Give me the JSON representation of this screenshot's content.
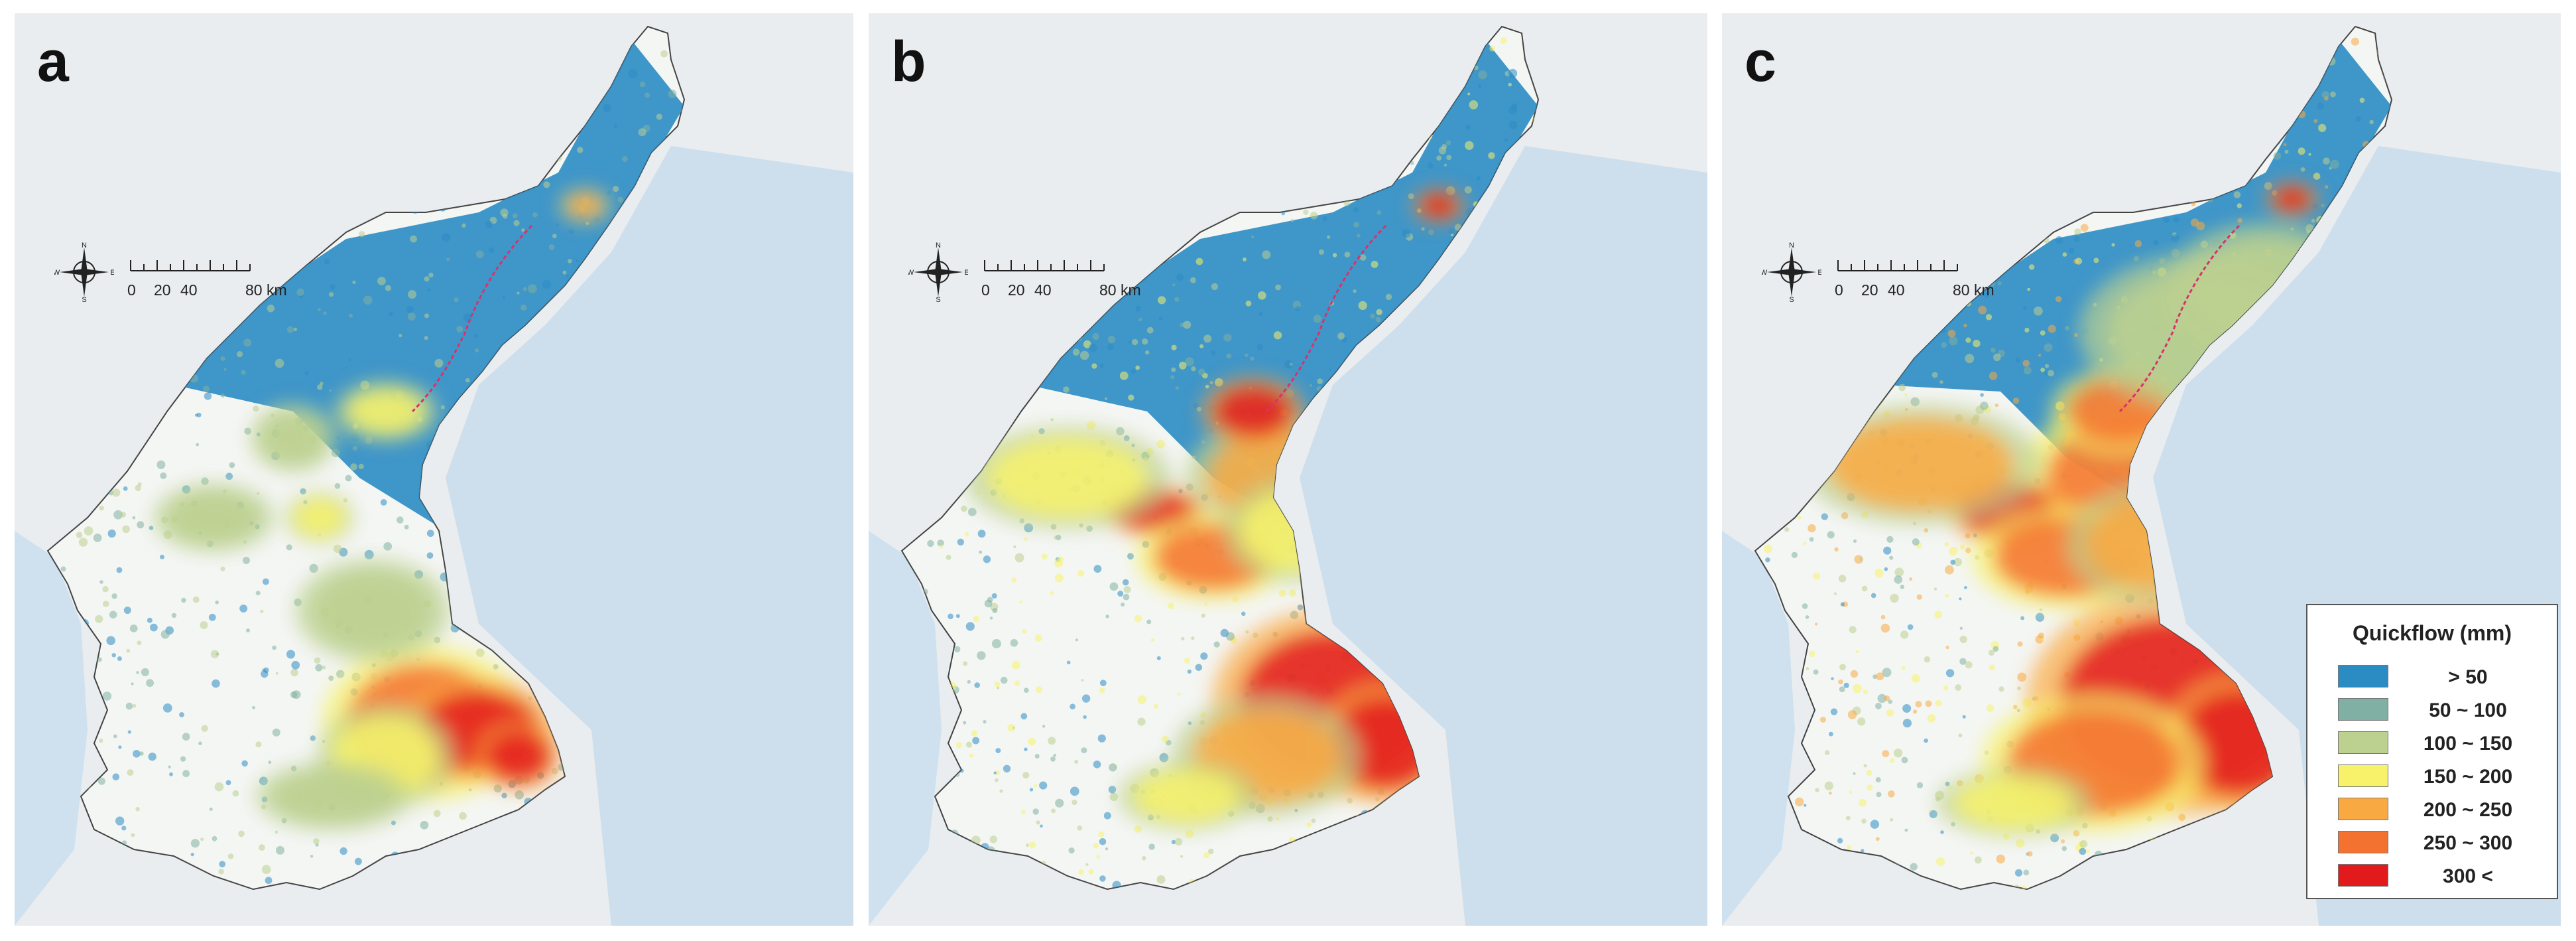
{
  "panels": [
    {
      "label": "a",
      "intensity": 0
    },
    {
      "label": "b",
      "intensity": 1
    },
    {
      "label": "c",
      "intensity": 2
    }
  ],
  "compass": {
    "n": "N",
    "s": "S",
    "e": "E",
    "w": "W"
  },
  "scale": {
    "ticks": [
      "0",
      "20",
      "40"
    ],
    "end": "80 km"
  },
  "legend": {
    "title": "Quickflow (mm)",
    "items": [
      {
        "label": ">  50",
        "color": "#2b8cc4"
      },
      {
        "label": "50 ~ 100",
        "color": "#7fb0a3"
      },
      {
        "label": "100 ~ 150",
        "color": "#bcd08f"
      },
      {
        "label": "150 ~ 200",
        "color": "#f7f26a"
      },
      {
        "label": "200 ~ 250",
        "color": "#f9a942"
      },
      {
        "label": "250 ~ 300",
        "color": "#f4722f"
      },
      {
        "label": "300 <",
        "color": "#e31a1c"
      }
    ]
  }
}
